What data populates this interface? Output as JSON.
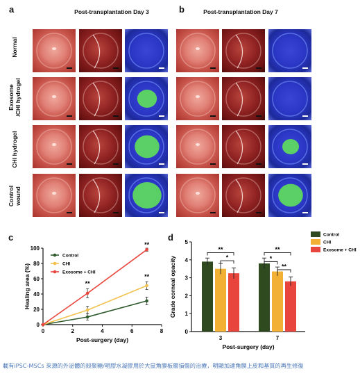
{
  "panels": {
    "a": {
      "letter": "a",
      "title": "Post-transplantation Day 3"
    },
    "b": {
      "letter": "b",
      "title": "Post-transplantation Day 7"
    },
    "c": {
      "letter": "c"
    },
    "d": {
      "letter": "d"
    }
  },
  "row_labels": [
    {
      "line1": "Normal",
      "line2": ""
    },
    {
      "line1": "Exosome",
      "line2": "/CHI hydrogel"
    },
    {
      "line1": "CHI hydrogel",
      "line2": ""
    },
    {
      "line1": "Control",
      "line2": "wound"
    }
  ],
  "image_tiles": {
    "kinds": [
      "white-light",
      "slit-lamp",
      "fluorescein-stain"
    ],
    "stain_area_fraction": [
      [
        0.0,
        0.0,
        0.0,
        0.0,
        0.0,
        0.0
      ],
      [
        0.0,
        0.0,
        0.35,
        0.0,
        0.0,
        0.0
      ],
      [
        0.0,
        0.0,
        0.55,
        0.0,
        0.0,
        0.25
      ],
      [
        0.0,
        0.0,
        0.75,
        0.0,
        0.0,
        0.55
      ]
    ],
    "colors": {
      "eye": "#d9786e",
      "slit": "#8a1d1d",
      "stain_bg": "#2a3dc8",
      "stain": "#5fe05a"
    }
  },
  "chart_data": [
    {
      "type": "line",
      "panel": "c",
      "xlabel": "Post-surgery (day)",
      "ylabel": "Healing area (%)",
      "xlim": [
        0,
        8
      ],
      "ylim": [
        0,
        100
      ],
      "xticks": [
        "0",
        "2",
        "4",
        "6",
        "8"
      ],
      "yticks": [
        "0",
        "20",
        "40",
        "60",
        "80",
        "100"
      ],
      "x": [
        0,
        3,
        7
      ],
      "series": [
        {
          "name": "Control",
          "color": "#2e5a2e",
          "values": [
            0,
            10,
            31
          ],
          "err": [
            0,
            4,
            5
          ]
        },
        {
          "name": "CHI",
          "color": "#f2c14e",
          "values": [
            0,
            19,
            51
          ],
          "err": [
            0,
            5,
            5
          ]
        },
        {
          "name": "Exosome + CHI",
          "color": "#e8453c",
          "values": [
            0,
            41,
            98
          ],
          "err": [
            0,
            6,
            2
          ]
        }
      ],
      "annotations": [
        {
          "x": 3,
          "y": 51,
          "text": "**"
        },
        {
          "x": 7,
          "y": 102,
          "text": "**"
        },
        {
          "x": 7,
          "y": 60,
          "text": "**"
        }
      ]
    },
    {
      "type": "bar",
      "panel": "d",
      "xlabel": "Post-surgery (day)",
      "ylabel": "Grade corneal opacity",
      "categories": [
        "3",
        "7"
      ],
      "ylim": [
        0,
        5
      ],
      "yticks": [
        "0",
        "1",
        "2",
        "3",
        "4",
        "5"
      ],
      "series": [
        {
          "name": "Control",
          "color": "#2e4a1e",
          "values": [
            3.9,
            3.8
          ],
          "err": [
            0.2,
            0.3
          ]
        },
        {
          "name": "CHI",
          "color": "#f2b134",
          "values": [
            3.5,
            3.35
          ],
          "err": [
            0.3,
            0.25
          ]
        },
        {
          "name": "Exosome + CHI",
          "color": "#e8453c",
          "values": [
            3.25,
            2.8
          ],
          "err": [
            0.3,
            0.25
          ]
        }
      ],
      "legend": "top-right",
      "brackets": [
        {
          "category": 0,
          "from": 0,
          "to": 2,
          "level": 4.4,
          "text": "**"
        },
        {
          "category": 0,
          "from": 1,
          "to": 2,
          "level": 3.95,
          "text": "*"
        },
        {
          "category": 1,
          "from": 0,
          "to": 2,
          "level": 4.4,
          "text": "**"
        },
        {
          "category": 1,
          "from": 0,
          "to": 1,
          "level": 3.9,
          "text": "*"
        },
        {
          "category": 1,
          "from": 1,
          "to": 2,
          "level": 3.45,
          "text": "**"
        }
      ]
    }
  ],
  "caption": "載有iPSC-MSCs 來源的外泌體的殼聚糖/明膠水凝膠用於大鼠角膜板層損傷的治療，明顯加速角膜上皮和基質的再生修復"
}
